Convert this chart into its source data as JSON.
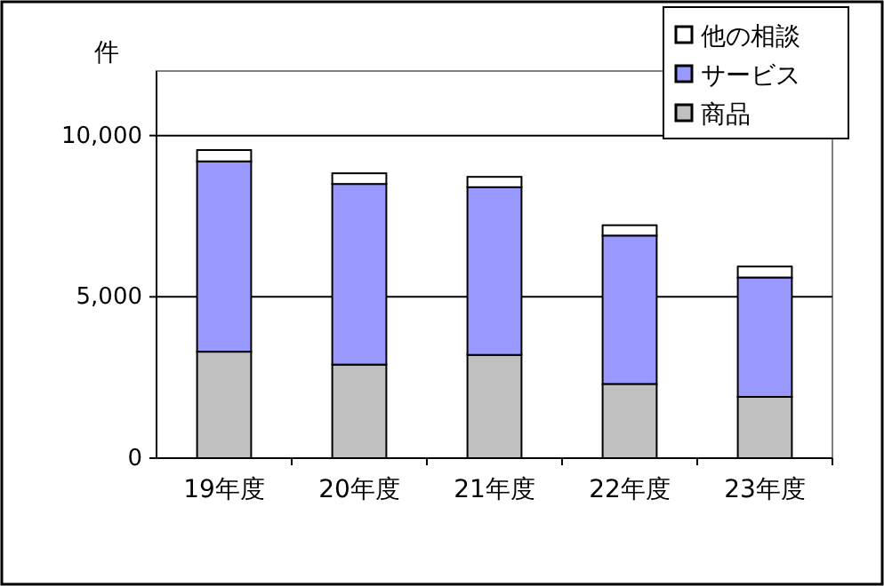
{
  "chart_data": {
    "type": "bar",
    "stacked": true,
    "ylabel": "件",
    "categories": [
      "19年度",
      "20年度",
      "21年度",
      "22年度",
      "23年度"
    ],
    "series": [
      {
        "name": "商品",
        "color": "#c0c0c0",
        "values": [
          3300,
          2900,
          3200,
          2300,
          1900
        ]
      },
      {
        "name": "サービス",
        "color": "#9999ff",
        "values": [
          5900,
          5600,
          5200,
          4600,
          3700
        ]
      },
      {
        "name": "他の相談",
        "color": "#ffffff",
        "values": [
          350,
          330,
          320,
          320,
          340
        ]
      }
    ],
    "ylim": [
      0,
      12000
    ],
    "yticks": [
      {
        "value": 0,
        "label": "0"
      },
      {
        "value": 5000,
        "label": "5,000"
      },
      {
        "value": 10000,
        "label": "10,000"
      }
    ],
    "grid": "y",
    "legend": "top right"
  }
}
